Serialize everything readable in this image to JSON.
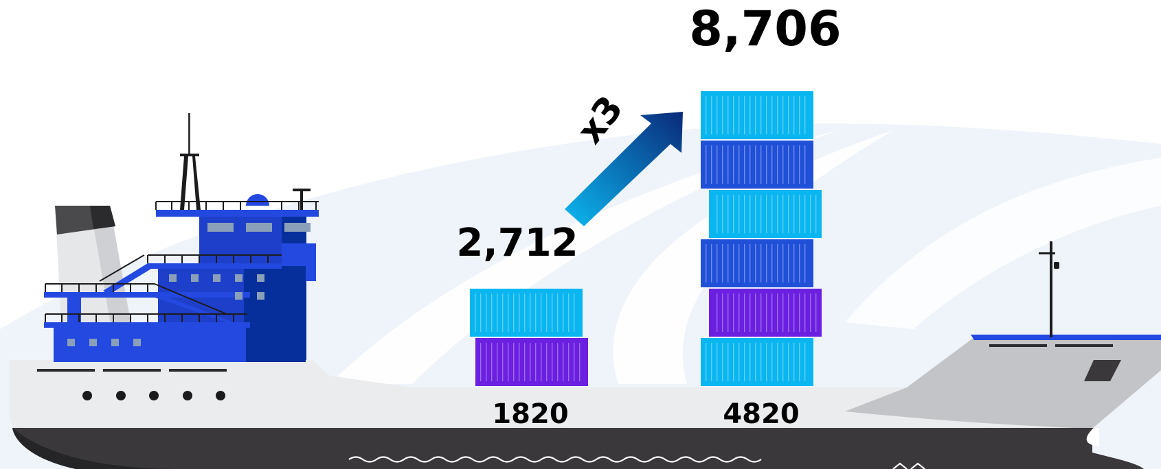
{
  "illustration": {
    "subject": "container ship",
    "colors": {
      "hull_dark": "#3a383b",
      "hull_light": "#ebecee",
      "bow": "#c3c4c7",
      "superstructure": "#2349e0",
      "superstructure_dark": "#062f9c",
      "funnel": "#4a4a4c",
      "container_cyan": "#0ab6f0",
      "container_blue": "#2050d8",
      "container_purple": "#6b1fe0",
      "arrow_start": "#0bb8f0",
      "arrow_end": "#0a2a7a"
    }
  },
  "chart_data": {
    "type": "bar",
    "categories": [
      "1820",
      "4820"
    ],
    "values": [
      2712,
      8706
    ],
    "value_labels": [
      "2,712",
      "8,706"
    ],
    "stacks": [
      [
        "purple",
        "cyan"
      ],
      [
        "cyan",
        "purple",
        "blue",
        "cyan",
        "blue",
        "cyan"
      ]
    ],
    "growth_label": "x3"
  }
}
